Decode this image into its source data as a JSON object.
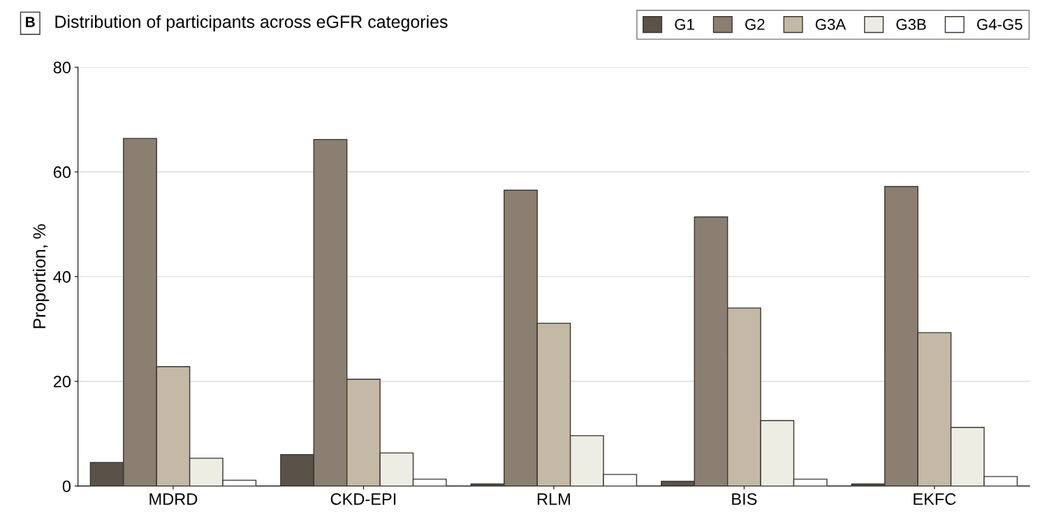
{
  "chart_data": {
    "type": "bar",
    "title": "Distribution of participants across eGFR categories",
    "annotations": [
      "B"
    ],
    "ylabel": "Proportion, %",
    "categories": [
      "MDRD",
      "CKD-EPI",
      "RLM",
      "BIS",
      "EKFC"
    ],
    "series": [
      {
        "name": "G1",
        "color": "#5a5249",
        "values": [
          4.5,
          6.0,
          0.4,
          0.9,
          0.4
        ]
      },
      {
        "name": "G2",
        "color": "#8a7f70",
        "values": [
          66.4,
          66.2,
          56.5,
          51.4,
          57.2
        ]
      },
      {
        "name": "G3A",
        "color": "#c4b8a6",
        "values": [
          22.8,
          20.4,
          31.1,
          34.0,
          29.3
        ]
      },
      {
        "name": "G3B",
        "color": "#eeede4",
        "values": [
          5.3,
          6.3,
          9.6,
          12.5,
          11.2
        ]
      },
      {
        "name": "G4-G5",
        "color": "#ffffff",
        "values": [
          1.1,
          1.3,
          2.2,
          1.3,
          1.8
        ]
      }
    ],
    "ylim": [
      0,
      80
    ],
    "yticks": [
      0,
      20,
      40,
      60,
      80
    ],
    "grid": "y",
    "legend": "top right"
  }
}
